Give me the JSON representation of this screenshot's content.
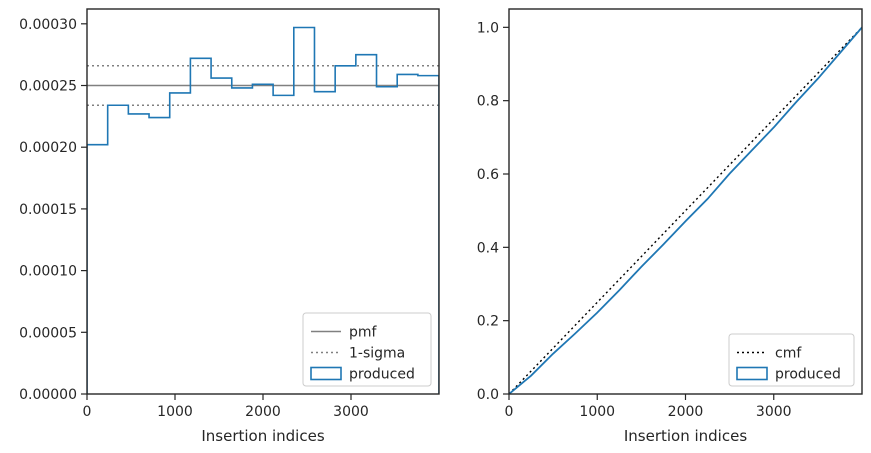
{
  "chart_data": [
    {
      "type": "line",
      "xlabel": "Insertion indices",
      "ylabel": "",
      "xlim": [
        0,
        4000
      ],
      "ylim": [
        0,
        0.000312
      ],
      "xticks": [
        0,
        1000,
        2000,
        3000
      ],
      "xtick_labels": [
        "0",
        "1000",
        "2000",
        "3000"
      ],
      "yticks": [
        0,
        5e-05,
        0.0001,
        0.00015,
        0.0002,
        0.00025,
        0.0003
      ],
      "ytick_labels": [
        "0.00000",
        "0.00005",
        "0.00010",
        "0.00015",
        "0.00020",
        "0.00025",
        "0.00030"
      ],
      "legend_position": "lower-right",
      "grid": false,
      "hlines": [
        {
          "name": "pmf",
          "y": 0.00025,
          "style": "solid",
          "color": "#808080"
        },
        {
          "name": "1-sigma",
          "y": 0.000266,
          "style": "dotted",
          "color": "#808080"
        },
        {
          "name": "1-sigma",
          "y": 0.000234,
          "style": "dotted",
          "color": "#808080"
        }
      ],
      "legend": [
        {
          "label": "pmf",
          "kind": "solid",
          "color": "#808080"
        },
        {
          "label": "1-sigma",
          "kind": "dotted",
          "color": "#808080"
        },
        {
          "label": "produced",
          "kind": "patch",
          "color": "#1f77b4"
        }
      ],
      "histogram": {
        "name": "produced",
        "color": "#1f77b4",
        "bin_edges": [
          0,
          235,
          470,
          705,
          940,
          1175,
          1410,
          1645,
          1880,
          2115,
          2350,
          2585,
          2820,
          3055,
          3290,
          3525,
          3760,
          4000
        ],
        "values": [
          0.000202,
          0.000234,
          0.000227,
          0.000224,
          0.000244,
          0.000272,
          0.000256,
          0.000248,
          0.000251,
          0.000242,
          0.000297,
          0.000245,
          0.000266,
          0.000275,
          0.000249,
          0.000259,
          0.000258
        ]
      }
    },
    {
      "type": "line",
      "xlabel": "Insertion indices",
      "ylabel": "",
      "xlim": [
        0,
        4000
      ],
      "ylim": [
        0,
        1.05
      ],
      "xticks": [
        0,
        1000,
        2000,
        3000
      ],
      "xtick_labels": [
        "0",
        "1000",
        "2000",
        "3000"
      ],
      "yticks": [
        0,
        0.2,
        0.4,
        0.6,
        0.8,
        1.0
      ],
      "ytick_labels": [
        "0.0",
        "0.2",
        "0.4",
        "0.6",
        "0.8",
        "1.0"
      ],
      "legend_position": "lower-right",
      "grid": false,
      "legend": [
        {
          "label": "cmf",
          "kind": "dotted",
          "color": "#000000"
        },
        {
          "label": "produced",
          "kind": "patch",
          "color": "#1f77b4"
        }
      ],
      "series": [
        {
          "name": "cmf",
          "style": "dotted",
          "color": "#000000",
          "x": [
            0,
            4000
          ],
          "y": [
            0,
            1.0
          ]
        },
        {
          "name": "produced",
          "style": "solid",
          "color": "#1f77b4",
          "x": [
            0,
            250,
            500,
            750,
            1000,
            1250,
            1500,
            1750,
            2000,
            2250,
            2500,
            2750,
            3000,
            3250,
            3500,
            3750,
            4000
          ],
          "y": [
            0,
            0.05,
            0.11,
            0.165,
            0.222,
            0.283,
            0.347,
            0.408,
            0.471,
            0.532,
            0.601,
            0.664,
            0.727,
            0.795,
            0.86,
            0.93,
            1.0
          ]
        }
      ]
    }
  ]
}
